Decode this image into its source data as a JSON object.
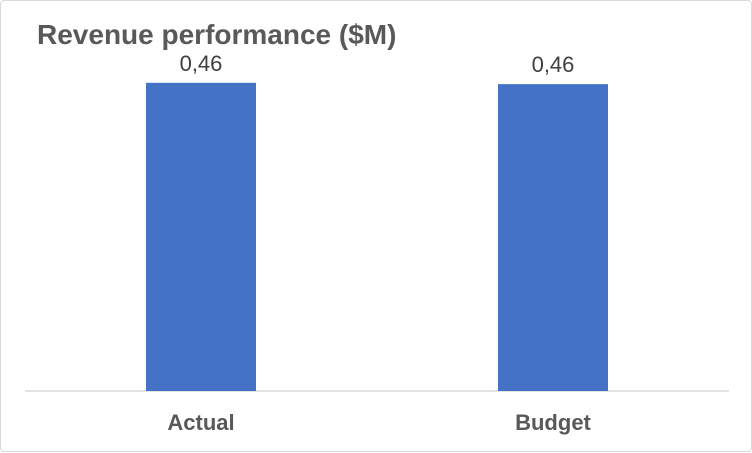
{
  "chart_data": {
    "type": "bar",
    "title": "Revenue performance ($M)",
    "categories": [
      "Actual",
      "Budget"
    ],
    "values": [
      0.46,
      0.458
    ],
    "data_labels": [
      "0,46",
      "0,46"
    ],
    "ylim": [
      0,
      0.5
    ],
    "grid": false,
    "legend": "none",
    "colors": {
      "bar": "#4472C4",
      "axis": "#d9d9d9"
    }
  }
}
